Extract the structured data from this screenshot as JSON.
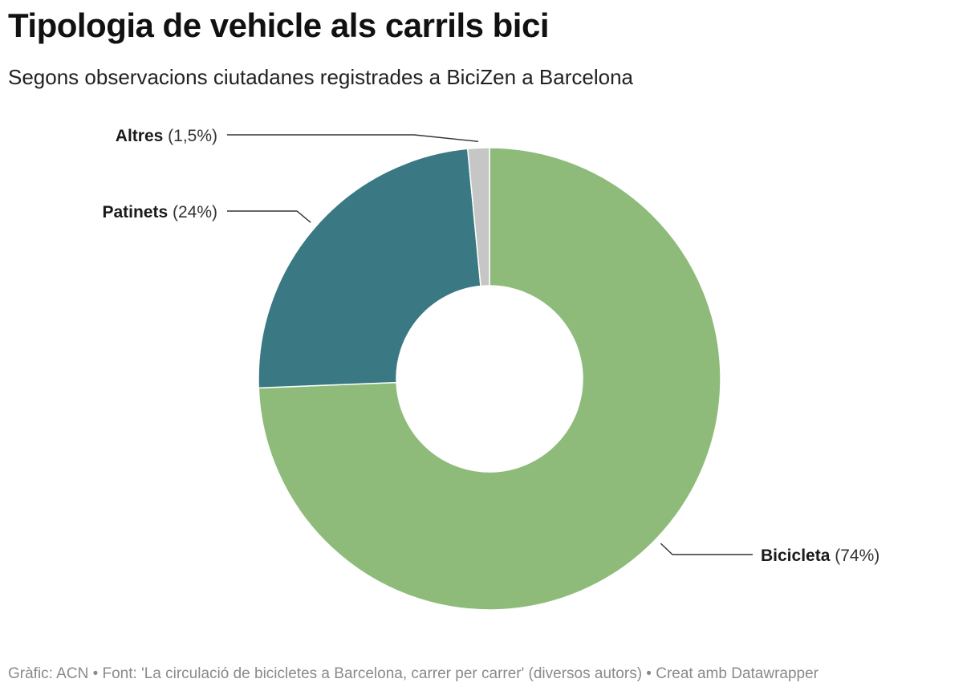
{
  "header": {
    "title": "Tipologia de vehicle als carrils bici",
    "subtitle": "Segons observacions ciutadanes registrades a BiciZen a Barcelona"
  },
  "chart_data": {
    "type": "pie",
    "variant": "donut",
    "slices": [
      {
        "name": "Bicicleta",
        "value": 74,
        "pct_label": "(74%)",
        "color": "#8fbb7a"
      },
      {
        "name": "Patinets",
        "value": 24,
        "pct_label": "(24%)",
        "color": "#3a7884"
      },
      {
        "name": "Altres",
        "value": 1.5,
        "pct_label": "(1,5%)",
        "color": "#c6c6c6"
      }
    ]
  },
  "footer": {
    "text": "Gràfic: ACN • Font: 'La circulació de bicicletes a Barcelona, carrer per carrer' (diversos autors) • Creat amb Datawrapper"
  }
}
